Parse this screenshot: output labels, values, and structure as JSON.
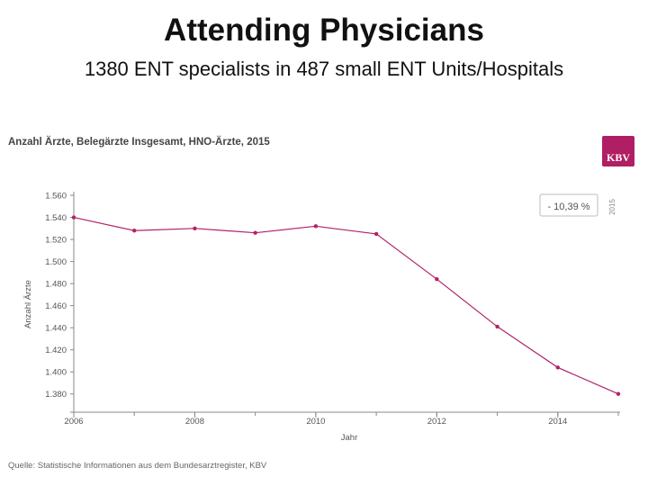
{
  "slide": {
    "title": "Attending Physicians",
    "subtitle": "1380 ENT specialists in 487 small ENT Units/Hospitals"
  },
  "chart_heading": "Anzahl Ärzte, Belegärzte Insgesamt, HNO-Ärzte, 2015",
  "logo_text": "KBV",
  "source": "Quelle: Statistische Informationen aus dem Bundesarztregister, KBV",
  "colors": {
    "line": "#b0236a",
    "axis": "#888888",
    "text": "#555555"
  },
  "chart_data": {
    "type": "line",
    "title": "Anzahl Ärzte, Belegärzte Insgesamt, HNO-Ärzte, 2015",
    "xlabel": "Jahr",
    "ylabel": "Anzahl Ärzte",
    "xlim": [
      2006,
      2015
    ],
    "ylim": [
      1370,
      1560
    ],
    "x_ticks": [
      2006,
      2008,
      2010,
      2012,
      2014
    ],
    "x_tick_labels": [
      "2006",
      "2008",
      "2010",
      "2012",
      "2014"
    ],
    "y_ticks": [
      1380,
      1400,
      1420,
      1440,
      1460,
      1480,
      1500,
      1520,
      1540,
      1560
    ],
    "y_tick_labels": [
      "1.380",
      "1.400",
      "1.420",
      "1.440",
      "1.460",
      "1.480",
      "1.500",
      "1.520",
      "1.540",
      "1.560"
    ],
    "series": [
      {
        "name": "HNO-Ärzte",
        "x": [
          2006,
          2007,
          2008,
          2009,
          2010,
          2011,
          2012,
          2013,
          2014,
          2015
        ],
        "values": [
          1540,
          1528,
          1530,
          1526,
          1532,
          1525,
          1484,
          1441,
          1404,
          1380
        ]
      }
    ],
    "annotation": "- 10,39 %",
    "side_label": "2015",
    "grid": false
  }
}
